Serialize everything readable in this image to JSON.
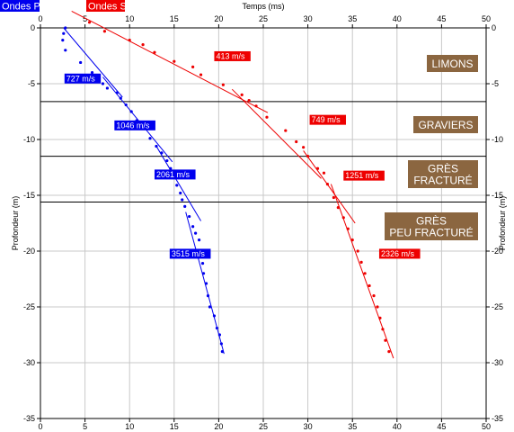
{
  "chart_data": {
    "type": "scatter",
    "title": "",
    "xlabel": "Temps (ms)",
    "ylabel_left": "Profondeur (m)",
    "ylabel_right": "Profondeur (m)",
    "xlim": [
      0,
      50
    ],
    "ylim": [
      -35,
      0
    ],
    "xticks": [
      "0",
      "5",
      "10",
      "15",
      "20",
      "25",
      "30",
      "35",
      "40",
      "45",
      "50"
    ],
    "yticks": [
      "0",
      "-5",
      "-10",
      "-15",
      "-20",
      "-25",
      "-30",
      "-35"
    ],
    "grid": true,
    "colors": {
      "p": "#0000ee",
      "s": "#ee0000",
      "layer_box": "#8b6640",
      "grid": "#c8c8c8"
    },
    "layer_boundaries": [
      -6.6,
      -11.5,
      -15.6
    ],
    "series": [
      {
        "name": "Ondes P",
        "color": "#0000ee",
        "points": [
          [
            2.8,
            0
          ],
          [
            2.6,
            -0.5
          ],
          [
            2.5,
            -1.1
          ],
          [
            2.8,
            -2.0
          ],
          [
            4.5,
            -3.1
          ],
          [
            5.8,
            -4.0
          ],
          [
            7.0,
            -5.0
          ],
          [
            7.5,
            -5.4
          ],
          [
            8.6,
            -5.8
          ],
          [
            9.0,
            -6.3
          ],
          [
            9.6,
            -6.9
          ],
          [
            10.2,
            -7.5
          ],
          [
            10.8,
            -8.3
          ],
          [
            11.5,
            -9.0
          ],
          [
            12.3,
            -9.9
          ],
          [
            13.0,
            -10.6
          ],
          [
            13.6,
            -11.2
          ],
          [
            14.2,
            -11.9
          ],
          [
            14.6,
            -12.6
          ],
          [
            15.0,
            -13.4
          ],
          [
            15.3,
            -14.1
          ],
          [
            15.7,
            -14.8
          ],
          [
            15.9,
            -15.4
          ],
          [
            16.2,
            -16.0
          ],
          [
            16.7,
            -16.9
          ],
          [
            17.1,
            -17.8
          ],
          [
            17.4,
            -18.4
          ],
          [
            17.8,
            -19.0
          ],
          [
            18.0,
            -20.0
          ],
          [
            18.2,
            -21.1
          ],
          [
            18.3,
            -22.0
          ],
          [
            18.6,
            -22.9
          ],
          [
            18.8,
            -24.0
          ],
          [
            19.0,
            -25.0
          ],
          [
            19.5,
            -25.8
          ],
          [
            19.8,
            -26.9
          ],
          [
            20.1,
            -27.5
          ],
          [
            20.3,
            -28.3
          ],
          [
            20.4,
            -29.0
          ]
        ],
        "segments": [
          {
            "velocity": "727 m/s",
            "from": [
              2.6,
              0
            ],
            "to": [
              9.2,
              -6.2
            ]
          },
          {
            "velocity": "1046 m/s",
            "from": [
              7.0,
              -4.4
            ],
            "to": [
              14.8,
              -12.0
            ]
          },
          {
            "velocity": "2061 m/s",
            "from": [
              13.0,
              -10.6
            ],
            "to": [
              18.0,
              -17.3
            ]
          },
          {
            "velocity": "3515 m/s",
            "from": [
              16.3,
              -16.5
            ],
            "to": [
              20.6,
              -29.2
            ]
          }
        ],
        "labels": [
          {
            "text": "727 m/s",
            "x": 2.7,
            "y": -4.9
          },
          {
            "text": "1046 m/s",
            "x": 8.3,
            "y": -9.1
          },
          {
            "text": "2061 m/s",
            "x": 12.8,
            "y": -13.5
          },
          {
            "text": "3515 m/s",
            "x": 14.5,
            "y": -20.6
          }
        ]
      },
      {
        "name": "Ondes S",
        "color": "#ee0000",
        "points": [
          [
            5.5,
            0.5
          ],
          [
            7.2,
            -0.3
          ],
          [
            10.0,
            -1.1
          ],
          [
            11.5,
            -1.5
          ],
          [
            12.8,
            -2.2
          ],
          [
            15.0,
            -3.0
          ],
          [
            17.1,
            -3.5
          ],
          [
            18.0,
            -4.2
          ],
          [
            20.5,
            -5.1
          ],
          [
            22.6,
            -6.0
          ],
          [
            23.4,
            -6.5
          ],
          [
            24.2,
            -7.0
          ],
          [
            25.4,
            -8.0
          ],
          [
            27.5,
            -9.2
          ],
          [
            28.7,
            -10.2
          ],
          [
            29.5,
            -10.7
          ],
          [
            30.0,
            -11.5
          ],
          [
            31.1,
            -12.6
          ],
          [
            31.8,
            -13.0
          ],
          [
            32.2,
            -14.0
          ],
          [
            32.9,
            -15.2
          ],
          [
            33.4,
            -16.1
          ],
          [
            34.0,
            -17.0
          ],
          [
            34.5,
            -18.0
          ],
          [
            35.0,
            -19.0
          ],
          [
            35.6,
            -20.0
          ],
          [
            36.0,
            -21.0
          ],
          [
            36.4,
            -22.0
          ],
          [
            36.9,
            -23.1
          ],
          [
            37.4,
            -24.0
          ],
          [
            37.8,
            -25.0
          ],
          [
            38.1,
            -26.0
          ],
          [
            38.4,
            -27.0
          ],
          [
            38.7,
            -28.0
          ],
          [
            39.1,
            -29.0
          ]
        ],
        "segments": [
          {
            "velocity": "413 m/s",
            "from": [
              3.5,
              1.5
            ],
            "to": [
              25.5,
              -7.6
            ]
          },
          {
            "velocity": "749 m/s",
            "from": [
              21.5,
              -5.5
            ],
            "to": [
              31.5,
              -13.5
            ]
          },
          {
            "velocity": "1251 m/s",
            "from": [
              29.5,
              -11.0
            ],
            "to": [
              35.3,
              -17.5
            ]
          },
          {
            "velocity": "2326 m/s",
            "from": [
              32.6,
              -14.0
            ],
            "to": [
              39.6,
              -29.6
            ]
          }
        ],
        "labels": [
          {
            "text": "413 m/s",
            "x": 19.5,
            "y": -2.9
          },
          {
            "text": "749 m/s",
            "x": 30.2,
            "y": -8.6
          },
          {
            "text": "1251 m/s",
            "x": 34.0,
            "y": -13.6
          },
          {
            "text": "2326 m/s",
            "x": 38.0,
            "y": -20.6
          }
        ]
      }
    ],
    "layers": [
      {
        "name": "LIMONS",
        "lines": [
          "LIMONS"
        ]
      },
      {
        "name": "GRAVIERS",
        "lines": [
          "GRAVIERS"
        ]
      },
      {
        "name": "GRÈS FRACTURÉ",
        "lines": [
          "GRÈS",
          "FRACTURÉ"
        ]
      },
      {
        "name": "GRÈS PEU FRACTURÉ",
        "lines": [
          "GRÈS",
          "PEU FRACTURÉ"
        ]
      }
    ]
  }
}
